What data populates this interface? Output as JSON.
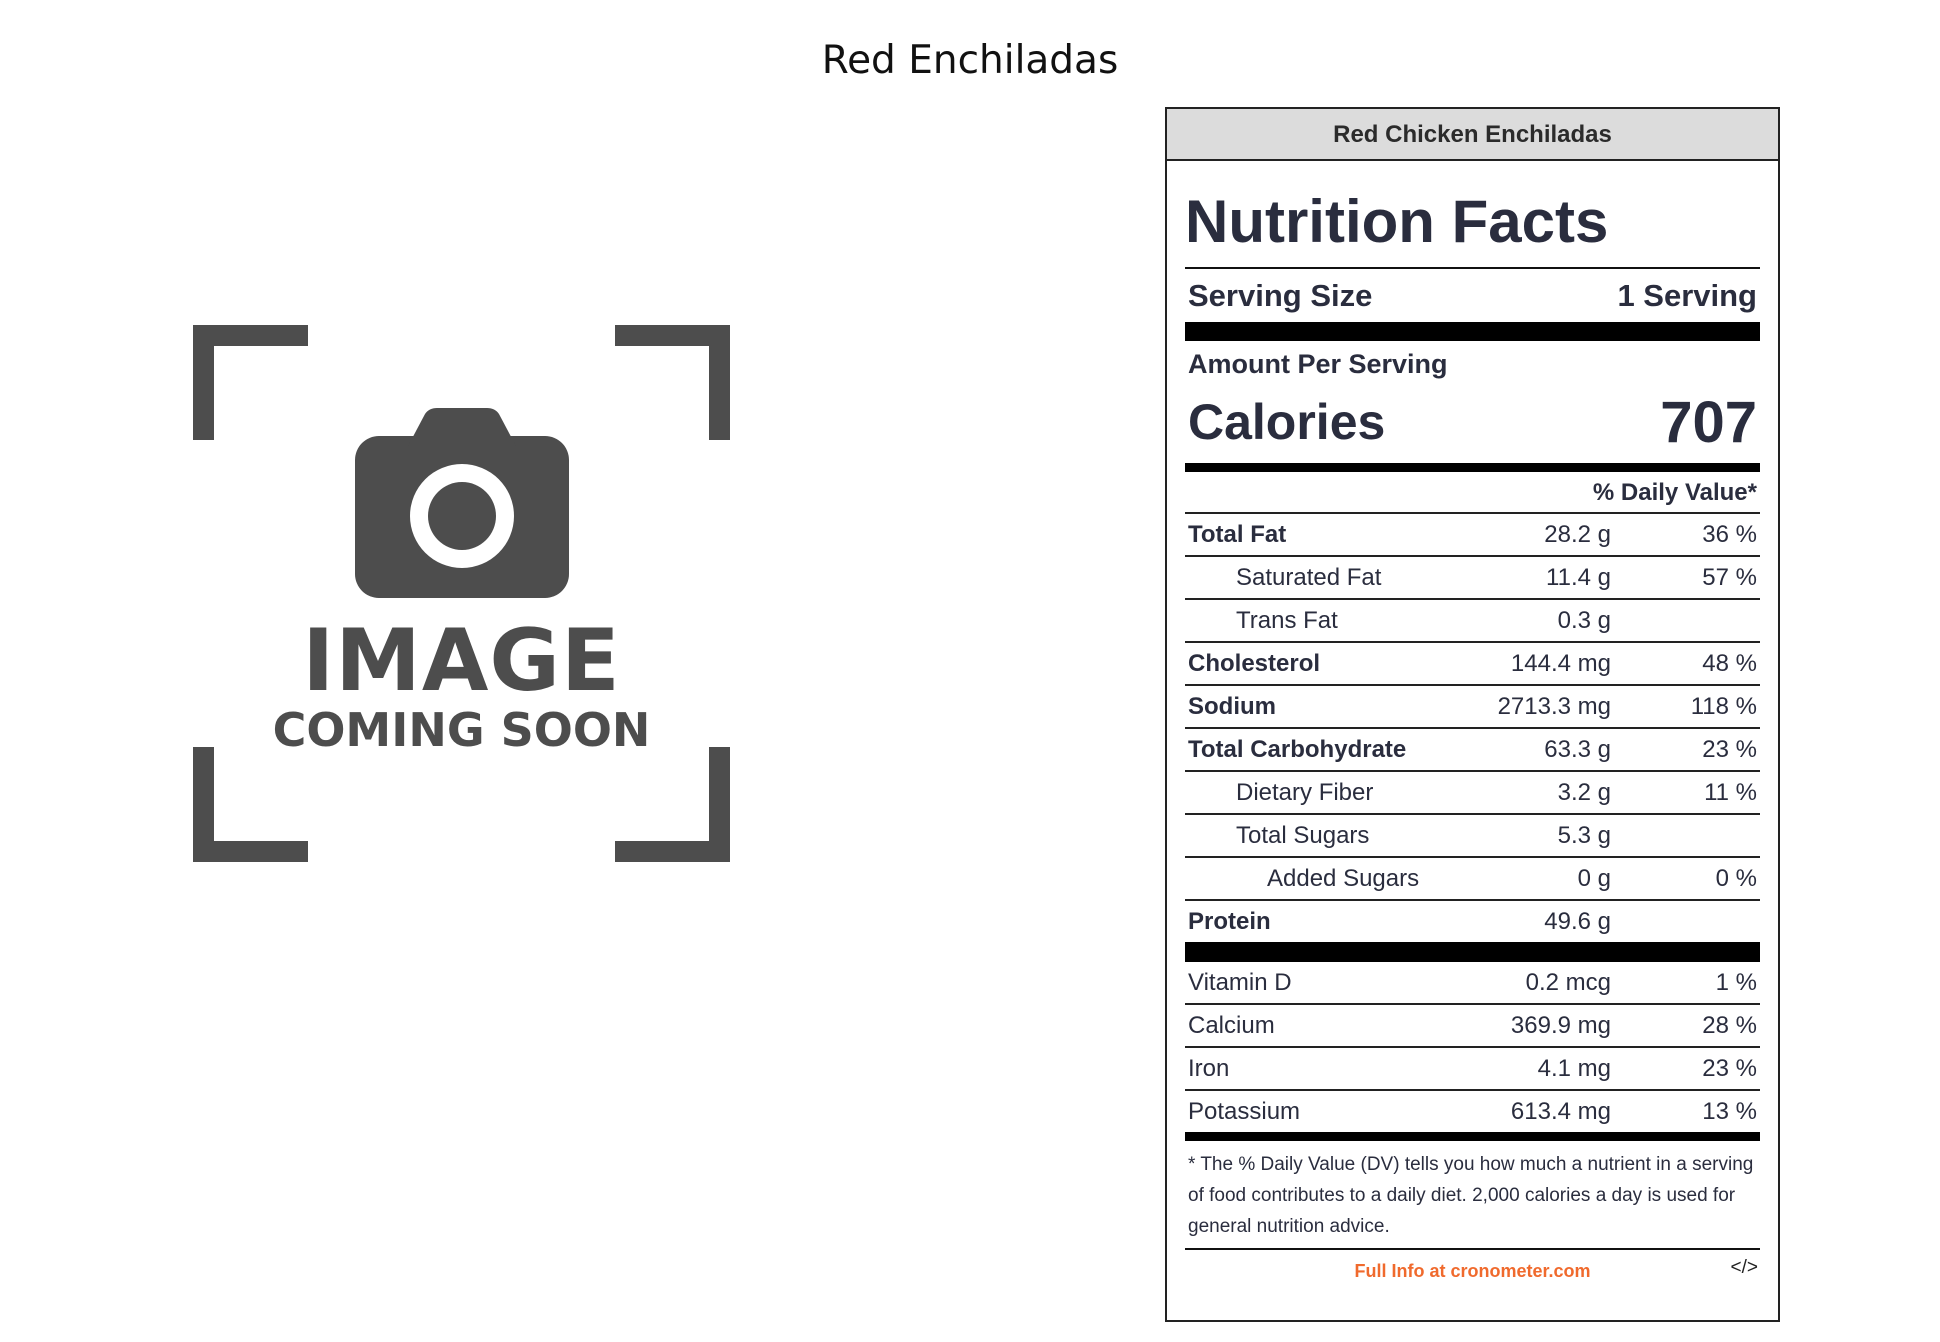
{
  "page": {
    "title": "Red Enchiladas"
  },
  "placeholder": {
    "line1": "IMAGE",
    "line2": "COMING SOON"
  },
  "label": {
    "header": "Red Chicken Enchiladas",
    "title": "Nutrition Facts",
    "serving_size_label": "Serving Size",
    "serving_size_value": "1 Serving",
    "amount_per_serving": "Amount Per Serving",
    "calories_label": "Calories",
    "calories_value": "707",
    "daily_value_header": "% Daily Value*",
    "nutrients": [
      {
        "name": "Total Fat",
        "amount": "28.2 g",
        "dv": "36 %"
      },
      {
        "name": "Saturated Fat",
        "amount": "11.4 g",
        "dv": "57 %"
      },
      {
        "name": "Trans Fat",
        "amount": "0.3 g",
        "dv": ""
      },
      {
        "name": "Cholesterol",
        "amount": "144.4 mg",
        "dv": "48 %"
      },
      {
        "name": "Sodium",
        "amount": "2713.3 mg",
        "dv": "118 %"
      },
      {
        "name": "Total Carbohydrate",
        "amount": "63.3 g",
        "dv": "23 %"
      },
      {
        "name": "Dietary Fiber",
        "amount": "3.2 g",
        "dv": "11 %"
      },
      {
        "name": "Total Sugars",
        "amount": "5.3 g",
        "dv": ""
      },
      {
        "name": "Added Sugars",
        "amount": "0 g",
        "dv": "0 %"
      },
      {
        "name": "Protein",
        "amount": "49.6 g",
        "dv": ""
      }
    ],
    "vitamins": [
      {
        "name": "Vitamin D",
        "amount": "0.2 mcg",
        "dv": "1 %"
      },
      {
        "name": "Calcium",
        "amount": "369.9 mg",
        "dv": "28 %"
      },
      {
        "name": "Iron",
        "amount": "4.1 mg",
        "dv": "23 %"
      },
      {
        "name": "Potassium",
        "amount": "613.4 mg",
        "dv": "13 %"
      }
    ],
    "footnote": "* The % Daily Value (DV) tells you how much a nutrient in a serving of food contributes to a daily diet. 2,000 calories a day is used for general nutrition advice.",
    "footer_link": "Full Info at cronometer.com",
    "embed_icon": "</>"
  }
}
